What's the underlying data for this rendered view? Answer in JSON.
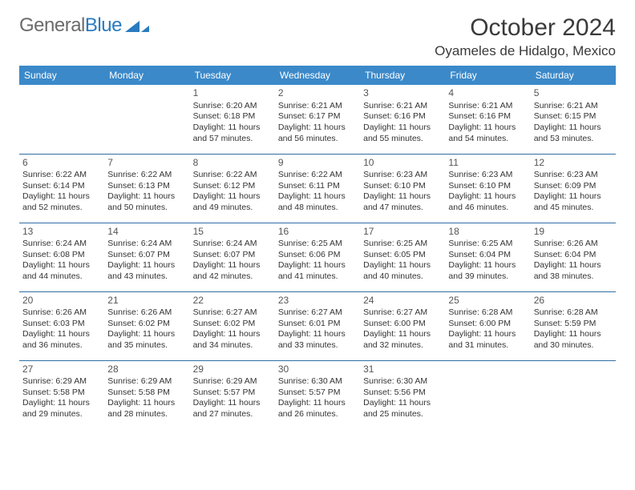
{
  "brand": {
    "part1": "General",
    "part2": "Blue"
  },
  "title": "October 2024",
  "location": "Oyameles de Hidalgo, Mexico",
  "colors": {
    "header_bg": "#3b89c9",
    "header_text": "#ffffff",
    "row_border": "#2f6ea3",
    "body_text": "#333333",
    "brand_gray": "#6b6b6b",
    "brand_blue": "#2a7bbf",
    "page_bg": "#ffffff"
  },
  "daysOfWeek": [
    "Sunday",
    "Monday",
    "Tuesday",
    "Wednesday",
    "Thursday",
    "Friday",
    "Saturday"
  ],
  "startOffset": 2,
  "days": [
    {
      "n": 1,
      "sunrise": "6:20 AM",
      "sunset": "6:18 PM",
      "dlh": 11,
      "dlm": 57
    },
    {
      "n": 2,
      "sunrise": "6:21 AM",
      "sunset": "6:17 PM",
      "dlh": 11,
      "dlm": 56
    },
    {
      "n": 3,
      "sunrise": "6:21 AM",
      "sunset": "6:16 PM",
      "dlh": 11,
      "dlm": 55
    },
    {
      "n": 4,
      "sunrise": "6:21 AM",
      "sunset": "6:16 PM",
      "dlh": 11,
      "dlm": 54
    },
    {
      "n": 5,
      "sunrise": "6:21 AM",
      "sunset": "6:15 PM",
      "dlh": 11,
      "dlm": 53
    },
    {
      "n": 6,
      "sunrise": "6:22 AM",
      "sunset": "6:14 PM",
      "dlh": 11,
      "dlm": 52
    },
    {
      "n": 7,
      "sunrise": "6:22 AM",
      "sunset": "6:13 PM",
      "dlh": 11,
      "dlm": 50
    },
    {
      "n": 8,
      "sunrise": "6:22 AM",
      "sunset": "6:12 PM",
      "dlh": 11,
      "dlm": 49
    },
    {
      "n": 9,
      "sunrise": "6:22 AM",
      "sunset": "6:11 PM",
      "dlh": 11,
      "dlm": 48
    },
    {
      "n": 10,
      "sunrise": "6:23 AM",
      "sunset": "6:10 PM",
      "dlh": 11,
      "dlm": 47
    },
    {
      "n": 11,
      "sunrise": "6:23 AM",
      "sunset": "6:10 PM",
      "dlh": 11,
      "dlm": 46
    },
    {
      "n": 12,
      "sunrise": "6:23 AM",
      "sunset": "6:09 PM",
      "dlh": 11,
      "dlm": 45
    },
    {
      "n": 13,
      "sunrise": "6:24 AM",
      "sunset": "6:08 PM",
      "dlh": 11,
      "dlm": 44
    },
    {
      "n": 14,
      "sunrise": "6:24 AM",
      "sunset": "6:07 PM",
      "dlh": 11,
      "dlm": 43
    },
    {
      "n": 15,
      "sunrise": "6:24 AM",
      "sunset": "6:07 PM",
      "dlh": 11,
      "dlm": 42
    },
    {
      "n": 16,
      "sunrise": "6:25 AM",
      "sunset": "6:06 PM",
      "dlh": 11,
      "dlm": 41
    },
    {
      "n": 17,
      "sunrise": "6:25 AM",
      "sunset": "6:05 PM",
      "dlh": 11,
      "dlm": 40
    },
    {
      "n": 18,
      "sunrise": "6:25 AM",
      "sunset": "6:04 PM",
      "dlh": 11,
      "dlm": 39
    },
    {
      "n": 19,
      "sunrise": "6:26 AM",
      "sunset": "6:04 PM",
      "dlh": 11,
      "dlm": 38
    },
    {
      "n": 20,
      "sunrise": "6:26 AM",
      "sunset": "6:03 PM",
      "dlh": 11,
      "dlm": 36
    },
    {
      "n": 21,
      "sunrise": "6:26 AM",
      "sunset": "6:02 PM",
      "dlh": 11,
      "dlm": 35
    },
    {
      "n": 22,
      "sunrise": "6:27 AM",
      "sunset": "6:02 PM",
      "dlh": 11,
      "dlm": 34
    },
    {
      "n": 23,
      "sunrise": "6:27 AM",
      "sunset": "6:01 PM",
      "dlh": 11,
      "dlm": 33
    },
    {
      "n": 24,
      "sunrise": "6:27 AM",
      "sunset": "6:00 PM",
      "dlh": 11,
      "dlm": 32
    },
    {
      "n": 25,
      "sunrise": "6:28 AM",
      "sunset": "6:00 PM",
      "dlh": 11,
      "dlm": 31
    },
    {
      "n": 26,
      "sunrise": "6:28 AM",
      "sunset": "5:59 PM",
      "dlh": 11,
      "dlm": 30
    },
    {
      "n": 27,
      "sunrise": "6:29 AM",
      "sunset": "5:58 PM",
      "dlh": 11,
      "dlm": 29
    },
    {
      "n": 28,
      "sunrise": "6:29 AM",
      "sunset": "5:58 PM",
      "dlh": 11,
      "dlm": 28
    },
    {
      "n": 29,
      "sunrise": "6:29 AM",
      "sunset": "5:57 PM",
      "dlh": 11,
      "dlm": 27
    },
    {
      "n": 30,
      "sunrise": "6:30 AM",
      "sunset": "5:57 PM",
      "dlh": 11,
      "dlm": 26
    },
    {
      "n": 31,
      "sunrise": "6:30 AM",
      "sunset": "5:56 PM",
      "dlh": 11,
      "dlm": 25
    }
  ],
  "labels": {
    "sunrise": "Sunrise:",
    "sunset": "Sunset:",
    "daylight_prefix": "Daylight:",
    "hours_word": "hours",
    "and_word": "and",
    "minutes_word": "minutes."
  }
}
